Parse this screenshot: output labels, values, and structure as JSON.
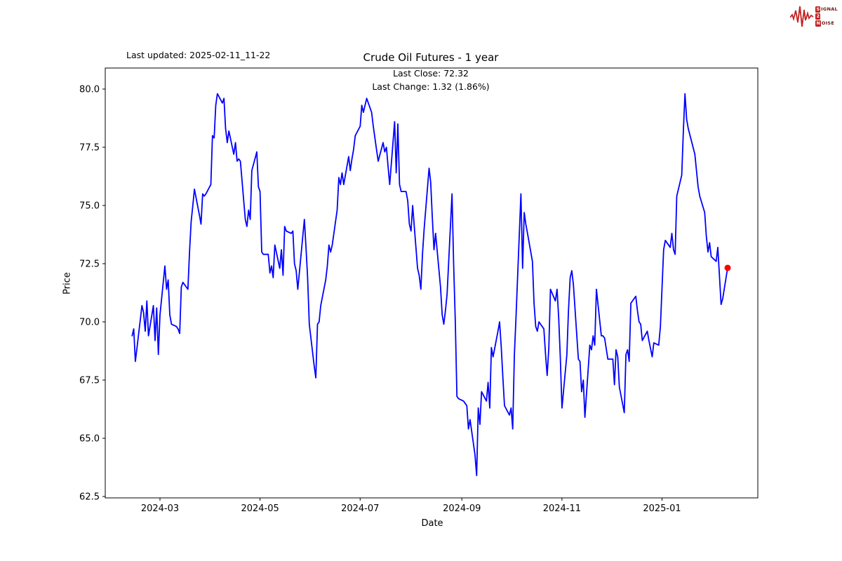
{
  "header": {
    "last_updated": "Last updated: 2025-02-11_11-22"
  },
  "logo": {
    "name": "Signal 2 Noise",
    "waveform_color": "#c22222",
    "s": "S",
    "ignal": "IGNAL",
    "two": "2",
    "n": "N",
    "oise": "OISE"
  },
  "chart_data": {
    "type": "line",
    "title": "Crude Oil Futures - 1 year",
    "annotation_line1": "Last Close: 72.32",
    "annotation_line2": "Last Change: 1.32 (1.86%)",
    "xlabel": "Date",
    "ylabel": "Price",
    "line_color": "#0000ff",
    "marker_color": "#ff0000",
    "last_close": 72.32,
    "last_change": 1.32,
    "last_change_pct": "1.86%",
    "ylim": [
      62.4,
      80.9
    ],
    "yticks": [
      62.5,
      65.0,
      67.5,
      70.0,
      72.5,
      75.0,
      77.5,
      80.0
    ],
    "xtick_dates": [
      "2024-03-01",
      "2024-05-01",
      "2024-07-01",
      "2024-09-01",
      "2024-11-01",
      "2025-01-01"
    ],
    "xtick_labels": [
      "2024-03",
      "2024-05",
      "2024-07",
      "2024-09",
      "2024-11",
      "2025-01"
    ],
    "grid": false,
    "legend": "none",
    "x": [
      "2024-02-13",
      "2024-02-14",
      "2024-02-15",
      "2024-02-16",
      "2024-02-19",
      "2024-02-20",
      "2024-02-21",
      "2024-02-22",
      "2024-02-23",
      "2024-02-26",
      "2024-02-27",
      "2024-02-28",
      "2024-02-29",
      "2024-03-01",
      "2024-03-04",
      "2024-03-05",
      "2024-03-06",
      "2024-03-07",
      "2024-03-08",
      "2024-03-11",
      "2024-03-12",
      "2024-03-13",
      "2024-03-14",
      "2024-03-15",
      "2024-03-18",
      "2024-03-19",
      "2024-03-20",
      "2024-03-21",
      "2024-03-22",
      "2024-03-25",
      "2024-03-26",
      "2024-03-27",
      "2024-03-28",
      "2024-03-29",
      "2024-04-01",
      "2024-04-02",
      "2024-04-03",
      "2024-04-04",
      "2024-04-05",
      "2024-04-08",
      "2024-04-09",
      "2024-04-10",
      "2024-04-11",
      "2024-04-12",
      "2024-04-15",
      "2024-04-16",
      "2024-04-17",
      "2024-04-18",
      "2024-04-19",
      "2024-04-22",
      "2024-04-23",
      "2024-04-24",
      "2024-04-25",
      "2024-04-26",
      "2024-04-29",
      "2024-04-30",
      "2024-05-01",
      "2024-05-02",
      "2024-05-03",
      "2024-05-06",
      "2024-05-07",
      "2024-05-08",
      "2024-05-09",
      "2024-05-10",
      "2024-05-13",
      "2024-05-14",
      "2024-05-15",
      "2024-05-16",
      "2024-05-17",
      "2024-05-20",
      "2024-05-21",
      "2024-05-22",
      "2024-05-23",
      "2024-05-24",
      "2024-05-28",
      "2024-05-29",
      "2024-05-30",
      "2024-05-31",
      "2024-06-03",
      "2024-06-04",
      "2024-06-05",
      "2024-06-06",
      "2024-06-07",
      "2024-06-10",
      "2024-06-11",
      "2024-06-12",
      "2024-06-13",
      "2024-06-14",
      "2024-06-17",
      "2024-06-18",
      "2024-06-19",
      "2024-06-20",
      "2024-06-21",
      "2024-06-24",
      "2024-06-25",
      "2024-06-26",
      "2024-06-27",
      "2024-06-28",
      "2024-07-01",
      "2024-07-02",
      "2024-07-03",
      "2024-07-05",
      "2024-07-08",
      "2024-07-09",
      "2024-07-10",
      "2024-07-11",
      "2024-07-12",
      "2024-07-15",
      "2024-07-16",
      "2024-07-17",
      "2024-07-18",
      "2024-07-19",
      "2024-07-22",
      "2024-07-23",
      "2024-07-24",
      "2024-07-25",
      "2024-07-26",
      "2024-07-29",
      "2024-07-30",
      "2024-07-31",
      "2024-08-01",
      "2024-08-02",
      "2024-08-05",
      "2024-08-06",
      "2024-08-07",
      "2024-08-08",
      "2024-08-09",
      "2024-08-12",
      "2024-08-13",
      "2024-08-14",
      "2024-08-15",
      "2024-08-16",
      "2024-08-19",
      "2024-08-20",
      "2024-08-21",
      "2024-08-22",
      "2024-08-23",
      "2024-08-26",
      "2024-08-27",
      "2024-08-28",
      "2024-08-29",
      "2024-08-30",
      "2024-09-02",
      "2024-09-03",
      "2024-09-04",
      "2024-09-05",
      "2024-09-06",
      "2024-09-09",
      "2024-09-10",
      "2024-09-11",
      "2024-09-12",
      "2024-09-13",
      "2024-09-16",
      "2024-09-17",
      "2024-09-18",
      "2024-09-19",
      "2024-09-20",
      "2024-09-23",
      "2024-09-24",
      "2024-09-25",
      "2024-09-26",
      "2024-09-27",
      "2024-09-30",
      "2024-10-01",
      "2024-10-02",
      "2024-10-03",
      "2024-10-04",
      "2024-10-07",
      "2024-10-08",
      "2024-10-09",
      "2024-10-10",
      "2024-10-11",
      "2024-10-14",
      "2024-10-15",
      "2024-10-16",
      "2024-10-17",
      "2024-10-18",
      "2024-10-21",
      "2024-10-22",
      "2024-10-23",
      "2024-10-24",
      "2024-10-25",
      "2024-10-28",
      "2024-10-29",
      "2024-10-30",
      "2024-10-31",
      "2024-11-01",
      "2024-11-04",
      "2024-11-05",
      "2024-11-06",
      "2024-11-07",
      "2024-11-08",
      "2024-11-11",
      "2024-11-12",
      "2024-11-13",
      "2024-11-14",
      "2024-11-15",
      "2024-11-18",
      "2024-11-19",
      "2024-11-20",
      "2024-11-21",
      "2024-11-22",
      "2024-11-25",
      "2024-11-26",
      "2024-11-27",
      "2024-11-29",
      "2024-12-02",
      "2024-12-03",
      "2024-12-04",
      "2024-12-05",
      "2024-12-06",
      "2024-12-09",
      "2024-12-10",
      "2024-12-11",
      "2024-12-12",
      "2024-12-13",
      "2024-12-16",
      "2024-12-17",
      "2024-12-18",
      "2024-12-19",
      "2024-12-20",
      "2024-12-23",
      "2024-12-24",
      "2024-12-26",
      "2024-12-27",
      "2024-12-30",
      "2024-12-31",
      "2025-01-02",
      "2025-01-03",
      "2025-01-06",
      "2025-01-07",
      "2025-01-08",
      "2025-01-09",
      "2025-01-10",
      "2025-01-13",
      "2025-01-14",
      "2025-01-15",
      "2025-01-16",
      "2025-01-17",
      "2025-01-21",
      "2025-01-22",
      "2025-01-23",
      "2025-01-24",
      "2025-01-27",
      "2025-01-28",
      "2025-01-29",
      "2025-01-30",
      "2025-01-31",
      "2025-02-03",
      "2025-02-04",
      "2025-02-05",
      "2025-02-06",
      "2025-02-07",
      "2025-02-10"
    ],
    "y": [
      69.4,
      69.7,
      68.3,
      68.9,
      70.7,
      70.4,
      69.6,
      70.9,
      69.4,
      70.7,
      69.2,
      70.6,
      68.6,
      70.3,
      72.4,
      71.4,
      71.8,
      70.3,
      69.9,
      69.8,
      69.7,
      69.5,
      71.5,
      71.7,
      71.4,
      73.0,
      74.3,
      75.0,
      75.7,
      74.6,
      74.2,
      75.5,
      75.4,
      75.5,
      75.9,
      78.0,
      77.9,
      79.3,
      79.8,
      79.4,
      79.6,
      78.3,
      77.7,
      78.2,
      77.2,
      77.7,
      76.9,
      77.0,
      76.9,
      74.4,
      74.1,
      74.8,
      74.4,
      76.5,
      77.3,
      75.8,
      75.6,
      73.0,
      72.9,
      72.9,
      72.1,
      72.4,
      71.9,
      73.3,
      72.3,
      73.1,
      72.0,
      74.1,
      73.9,
      73.8,
      73.9,
      72.5,
      72.2,
      71.4,
      74.4,
      73.2,
      71.9,
      69.9,
      68.1,
      67.6,
      69.9,
      70.0,
      70.7,
      71.8,
      72.4,
      73.3,
      73.0,
      73.3,
      74.8,
      76.2,
      75.9,
      76.4,
      75.9,
      77.1,
      76.5,
      77.0,
      77.4,
      78.0,
      78.4,
      79.3,
      79.0,
      79.6,
      79.0,
      78.4,
      77.9,
      77.4,
      76.9,
      77.7,
      77.3,
      77.5,
      76.7,
      75.9,
      78.6,
      76.4,
      78.5,
      75.9,
      75.6,
      75.6,
      75.2,
      74.2,
      73.9,
      75.0,
      72.3,
      72.0,
      71.4,
      72.9,
      74.0,
      76.6,
      76.0,
      74.5,
      73.1,
      73.8,
      71.5,
      70.3,
      69.9,
      70.5,
      71.2,
      75.5,
      72.5,
      70.0,
      66.8,
      66.7,
      66.6,
      66.5,
      66.4,
      65.4,
      65.8,
      64.3,
      63.4,
      66.3,
      65.6,
      67.0,
      66.6,
      67.4,
      66.3,
      68.9,
      68.5,
      69.6,
      70.0,
      68.9,
      67.6,
      66.4,
      66.0,
      66.3,
      65.4,
      68.6,
      70.2,
      75.5,
      72.3,
      74.7,
      74.2,
      73.8,
      72.6,
      70.8,
      69.8,
      69.6,
      70.0,
      69.7,
      68.6,
      67.7,
      68.9,
      71.4,
      70.9,
      71.4,
      70.2,
      68.5,
      66.3,
      68.6,
      70.5,
      71.9,
      72.2,
      71.6,
      68.4,
      68.3,
      67.0,
      67.5,
      65.9,
      69.0,
      68.8,
      69.4,
      69.0,
      71.4,
      69.4,
      69.4,
      69.3,
      68.4,
      68.4,
      67.3,
      68.8,
      68.5,
      67.2,
      66.1,
      68.6,
      68.8,
      68.3,
      70.8,
      71.1,
      70.5,
      70.0,
      69.9,
      69.2,
      69.6,
      69.2,
      68.5,
      69.1,
      69.0,
      69.8,
      73.1,
      73.5,
      73.2,
      73.8,
      73.1,
      72.9,
      75.4,
      76.3,
      78.2,
      79.8,
      78.7,
      78.3,
      77.2,
      76.5,
      75.8,
      75.4,
      74.7,
      73.7,
      73.0,
      73.4,
      72.8,
      72.6,
      73.2,
      72.0,
      70.75,
      71.0,
      72.32
    ]
  }
}
